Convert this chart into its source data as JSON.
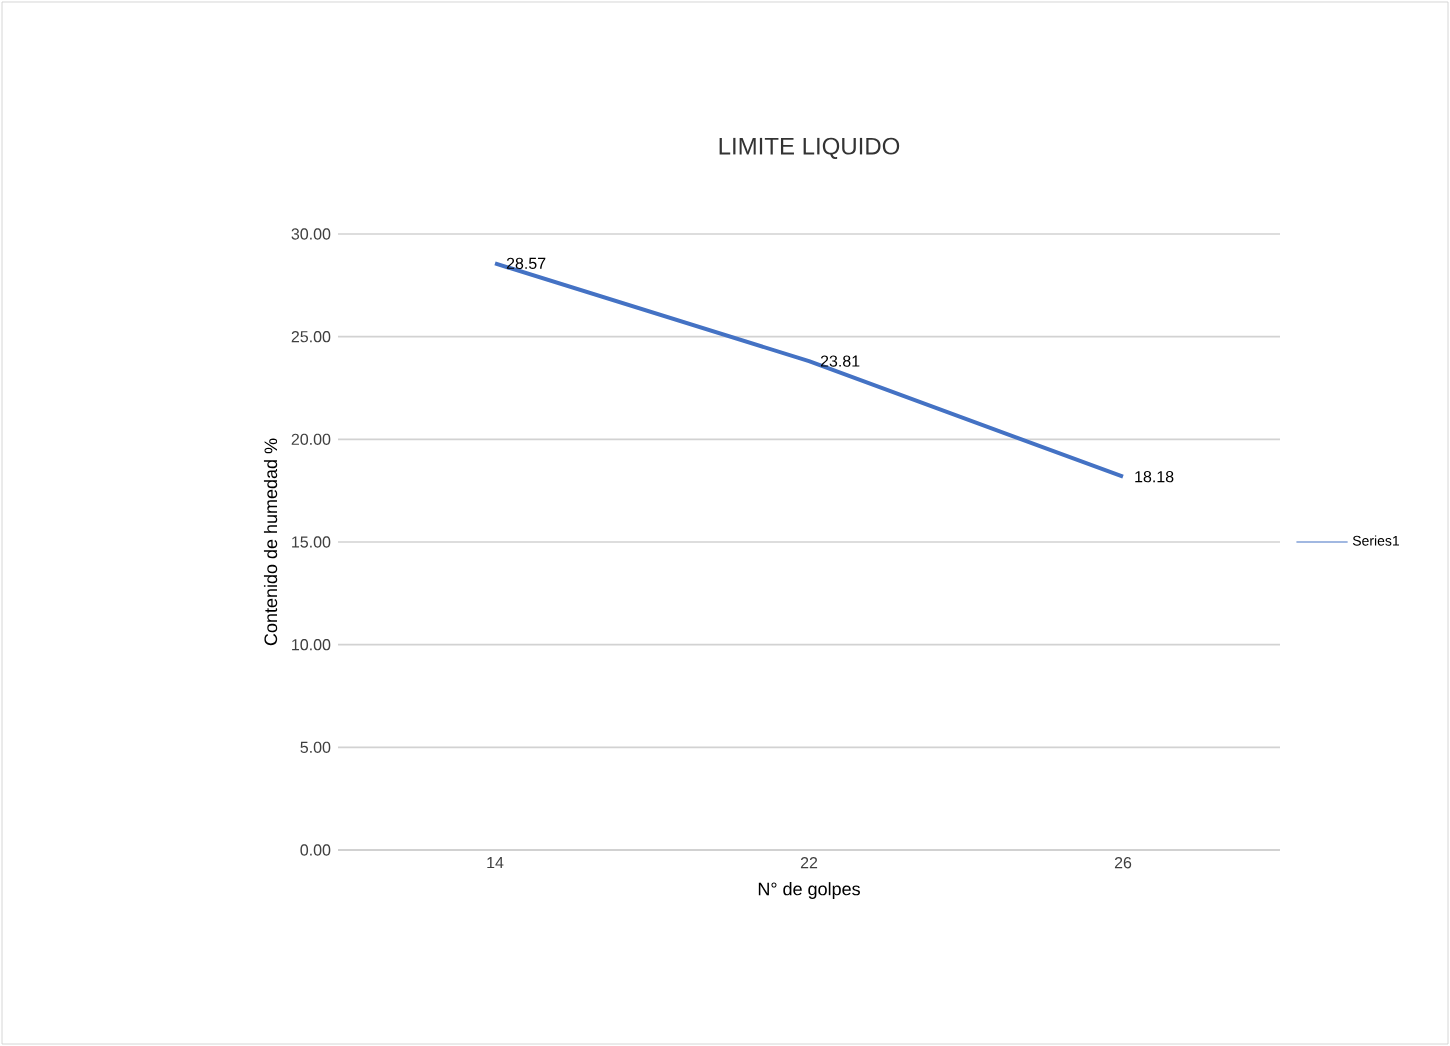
{
  "chart_data": {
    "type": "line",
    "title": "LIMITE LIQUIDO",
    "xlabel": "N° de golpes",
    "ylabel": "Contenido de humedad %",
    "categories": [
      "14",
      "22",
      "26"
    ],
    "series": [
      {
        "name": "Series1",
        "color": "#4472c4",
        "values": [
          28.57,
          23.81,
          18.18
        ]
      }
    ],
    "ylim": [
      0,
      30
    ],
    "yticks": [
      {
        "value": 0,
        "label": "0.00"
      },
      {
        "value": 5,
        "label": "5.00"
      },
      {
        "value": 10,
        "label": "10.00"
      },
      {
        "value": 15,
        "label": "15.00"
      },
      {
        "value": 20,
        "label": "20.00"
      },
      {
        "value": 25,
        "label": "25.00"
      },
      {
        "value": 30,
        "label": "30.00"
      }
    ],
    "grid": "y",
    "legend": "right",
    "data_labels": true,
    "marker": "none",
    "line_style": "solid"
  }
}
